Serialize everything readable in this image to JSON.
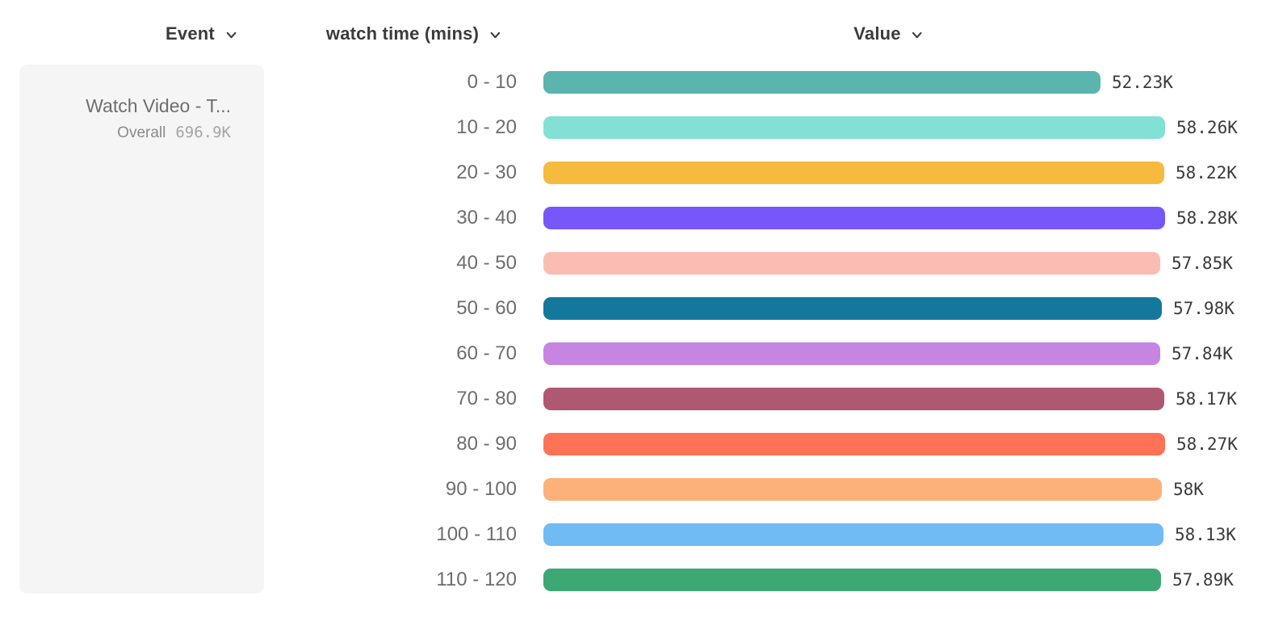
{
  "header": {
    "event_column": "Event",
    "series_column": "watch time (mins)",
    "value_column": "Value"
  },
  "legend": {
    "event_name": "Watch Video - T...",
    "overall_label": "Overall",
    "overall_value": "696.9K"
  },
  "colors": {
    "header_text": "#3b3b3b",
    "row_label_text": "#6d6d6d",
    "value_text": "#3b3b3b",
    "card_background": "#f5f5f6",
    "event_name_text": "#6e6e6e",
    "overall_label_text": "#8a8a8a",
    "overall_value_text": "#a5a5a5"
  },
  "chart_data": {
    "type": "bar",
    "orientation": "horizontal",
    "series_name": "watch time (mins)",
    "unit": "K",
    "categories": [
      "0 - 10",
      "10 - 20",
      "20 - 30",
      "30 - 40",
      "40 - 50",
      "50 - 60",
      "60 - 70",
      "70 - 80",
      "80 - 90",
      "90 - 100",
      "100 - 110",
      "110 - 120"
    ],
    "values_k": [
      52.23,
      58.26,
      58.22,
      58.28,
      57.85,
      57.98,
      57.84,
      58.17,
      58.27,
      58.0,
      58.13,
      57.89
    ],
    "value_labels": [
      "52.23K",
      "58.26K",
      "58.22K",
      "58.28K",
      "57.85K",
      "57.98K",
      "57.84K",
      "58.17K",
      "58.27K",
      "58K",
      "58.13K",
      "57.89K"
    ],
    "bar_colors": [
      "#5CB4AE",
      "#82E0D5",
      "#F6BA3E",
      "#7756FA",
      "#FBBDB3",
      "#13789B",
      "#C685E1",
      "#AE5971",
      "#FE7255",
      "#FCB178",
      "#70BBF3",
      "#3DA873"
    ],
    "xlim_k": [
      0,
      58.28
    ],
    "grid": false,
    "legend_position": "left"
  }
}
